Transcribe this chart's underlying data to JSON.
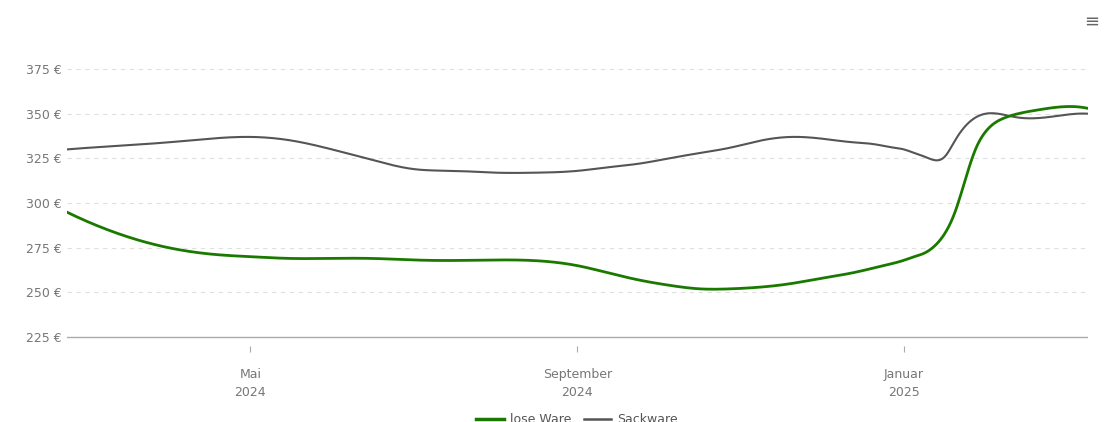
{
  "background_color": "#ffffff",
  "grid_color": "#e0e0e0",
  "line_green_color": "#1a7a00",
  "line_gray_color": "#555555",
  "legend_labels": [
    "lose Ware",
    "Sackware"
  ],
  "x_tick_labels_line1": [
    "Mai",
    "September",
    "Januar"
  ],
  "x_tick_labels_line2": [
    "2024",
    "2024",
    "2025"
  ],
  "yticks": [
    225,
    250,
    275,
    300,
    325,
    350,
    375
  ],
  "ytick_labels": [
    "225 €",
    "250 €",
    "275 €",
    "300 €",
    "325 €",
    "350 €",
    "375 €"
  ],
  "ylim": [
    220,
    390
  ],
  "xlim": [
    0,
    100
  ],
  "x_tick_positions": [
    18,
    50,
    82
  ],
  "lose_ware_x": [
    0,
    5,
    10,
    15,
    18,
    22,
    25,
    30,
    35,
    40,
    45,
    50,
    53,
    56,
    59,
    62,
    65,
    68,
    71,
    74,
    77,
    80,
    82,
    83,
    84,
    85,
    86,
    87,
    88,
    89,
    90,
    92,
    95,
    98,
    100
  ],
  "lose_ware_y": [
    295,
    283,
    275,
    271,
    270,
    269,
    269,
    269,
    268,
    268,
    268,
    265,
    261,
    257,
    254,
    252,
    252,
    253,
    255,
    258,
    261,
    265,
    268,
    270,
    272,
    276,
    283,
    295,
    313,
    330,
    340,
    348,
    352,
    354,
    353
  ],
  "sackware_x": [
    0,
    5,
    10,
    14,
    18,
    22,
    26,
    30,
    34,
    38,
    42,
    46,
    50,
    53,
    56,
    59,
    62,
    65,
    68,
    71,
    74,
    77,
    79,
    80,
    81,
    82,
    83,
    84,
    85,
    86,
    87,
    88,
    90,
    93,
    96,
    99,
    100
  ],
  "sackware_y": [
    330,
    332,
    334,
    336,
    337,
    335,
    330,
    324,
    319,
    318,
    317,
    317,
    318,
    320,
    322,
    325,
    328,
    331,
    335,
    337,
    336,
    334,
    333,
    332,
    331,
    330,
    328,
    326,
    324,
    326,
    335,
    343,
    350,
    348,
    348,
    350,
    350
  ]
}
